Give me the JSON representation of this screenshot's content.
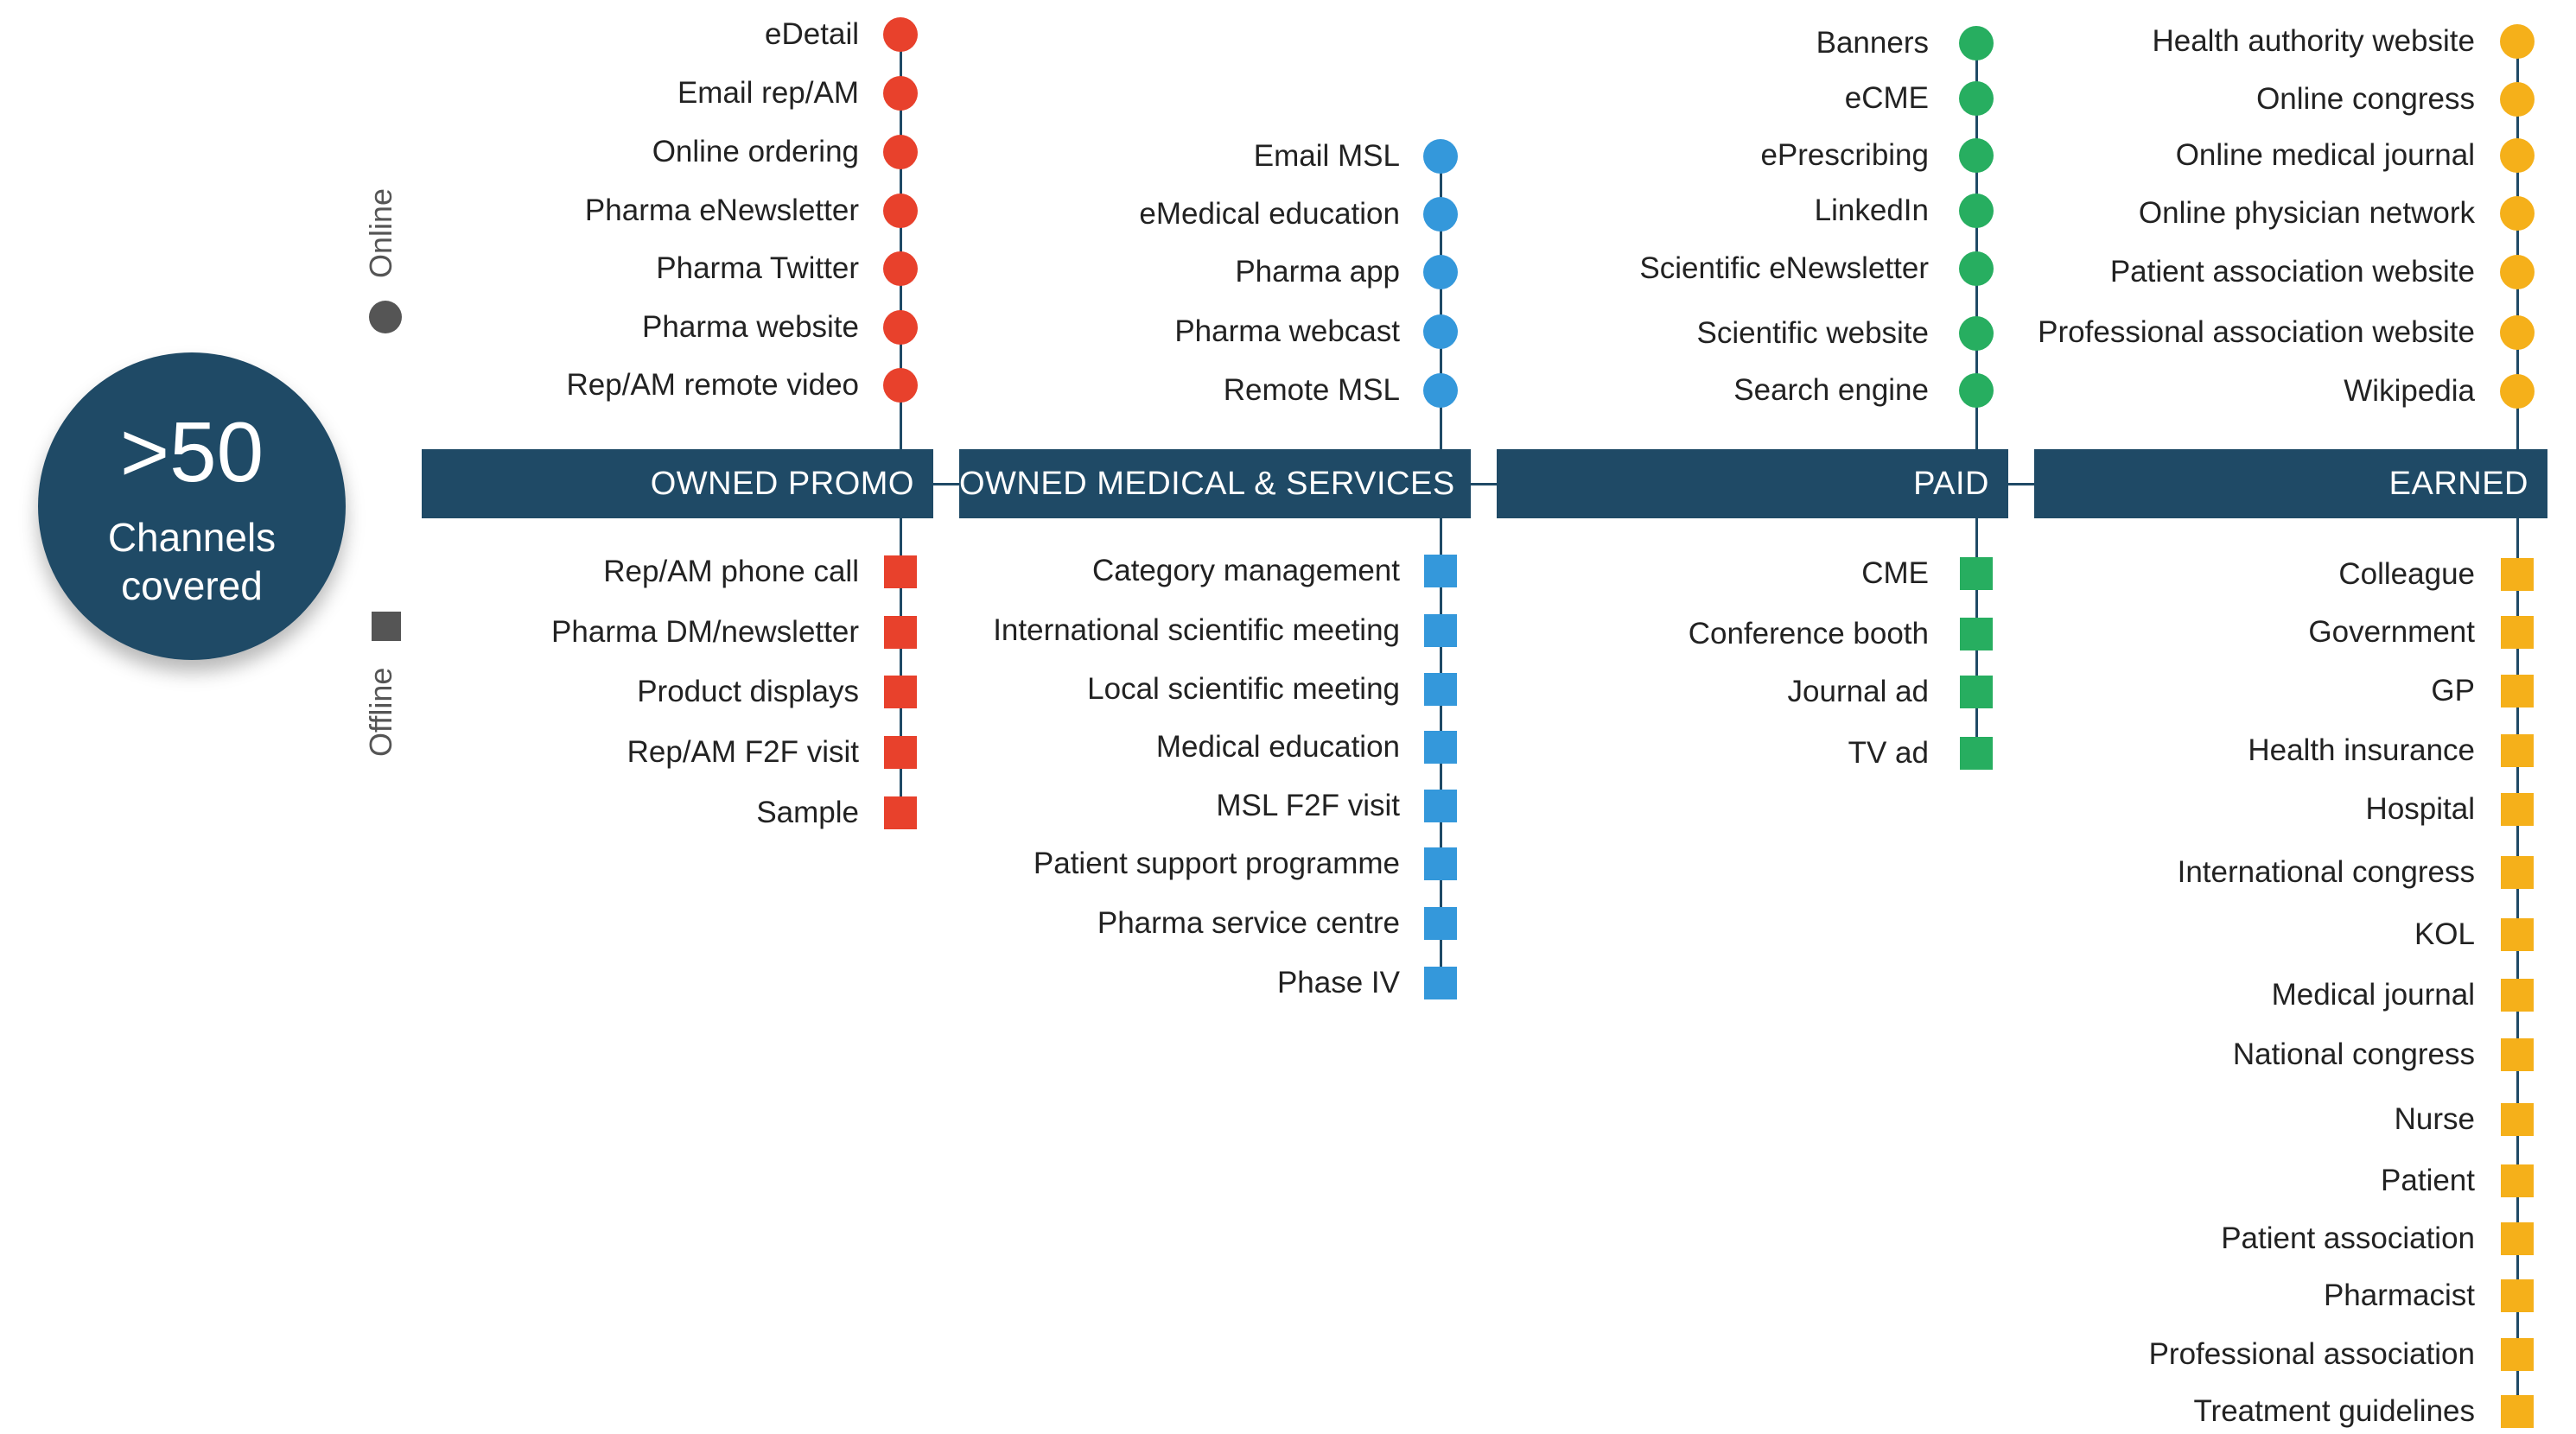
{
  "hub": {
    "big": ">50",
    "line1": "Channels",
    "line2": "covered"
  },
  "legend": {
    "online": "Online",
    "offline": "Offline"
  },
  "groups": [
    {
      "key": "owned-promo",
      "title": "OWNED PROMO",
      "color": "#e8412c",
      "online": [
        "eDetail",
        "Email rep/AM",
        "Online ordering",
        "Pharma eNewsletter",
        "Pharma Twitter",
        "Pharma website",
        "Rep/AM remote video"
      ],
      "offline": [
        "Rep/AM phone call",
        "Pharma DM/newsletter",
        "Product displays",
        "Rep/AM F2F visit",
        "Sample"
      ]
    },
    {
      "key": "owned-medical-services",
      "title": "OWNED MEDICAL & SERVICES",
      "color": "#3498db",
      "online": [
        "Email MSL",
        "eMedical education",
        "Pharma app",
        "Pharma webcast",
        "Remote MSL"
      ],
      "offline": [
        "Category management",
        "International scientific meeting",
        "Local scientific meeting",
        "Medical education",
        "MSL F2F visit",
        "Patient support programme",
        "Pharma service centre",
        "Phase IV"
      ]
    },
    {
      "key": "paid",
      "title": "PAID",
      "color": "#27ae60",
      "online": [
        "Banners",
        "eCME",
        "ePrescribing",
        "LinkedIn",
        "Scientific eNewsletter",
        "Scientific website",
        "Search engine"
      ],
      "offline": [
        "CME",
        "Conference booth",
        "Journal ad",
        "TV ad"
      ]
    },
    {
      "key": "earned",
      "title": "EARNED",
      "color": "#f5b01a",
      "online": [
        "Health authority website",
        "Online congress",
        "Online medical journal",
        "Online physician network",
        "Patient association website",
        "Professional association website",
        "Wikipedia"
      ],
      "offline": [
        "Colleague",
        "Government",
        "GP",
        "Health insurance",
        "Hospital",
        "International congress",
        "KOL",
        "Medical journal",
        "National congress",
        "Nurse",
        "Patient",
        "Patient association",
        "Pharmacist",
        "Professional association",
        "Treatment guidelines"
      ]
    }
  ]
}
